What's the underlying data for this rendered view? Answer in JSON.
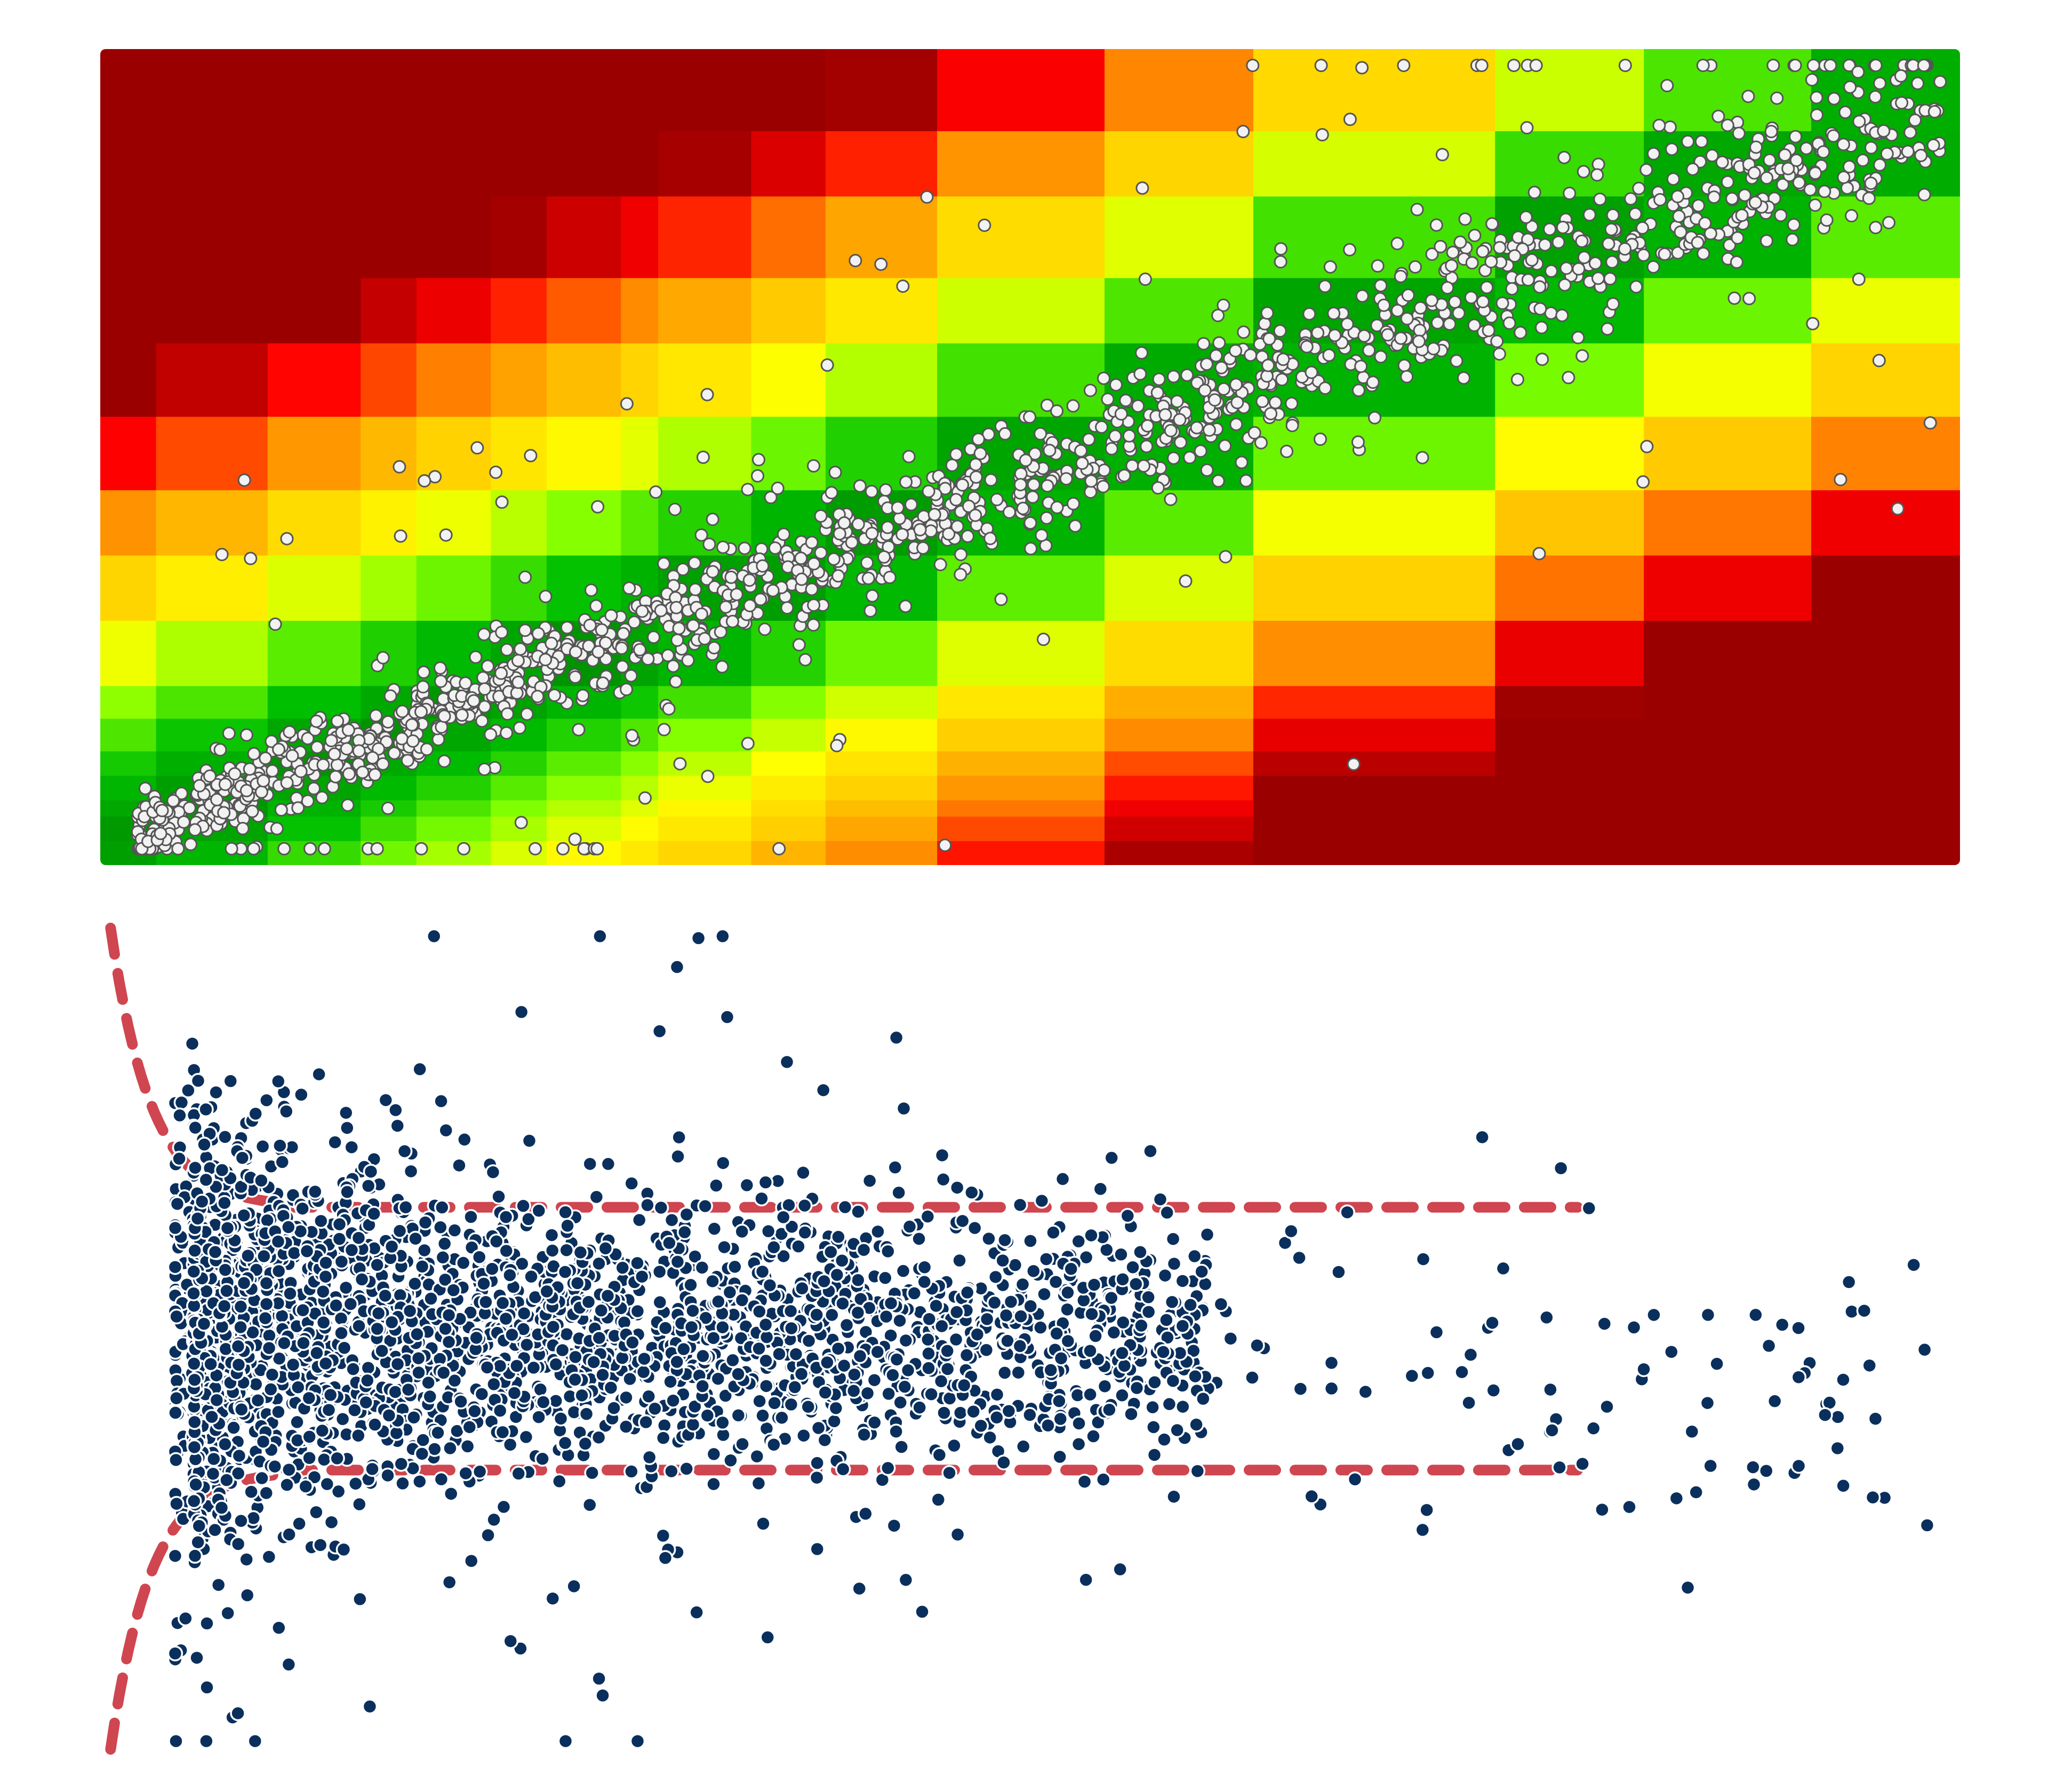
{
  "chart_data": [
    {
      "type": "heatmap",
      "title": "",
      "xlabel": "",
      "ylabel": "",
      "xlim": [
        0,
        1
      ],
      "ylim": [
        0,
        1
      ],
      "grid": false,
      "legend": "none",
      "colormap": [
        "#9b0000",
        "#ff0000",
        "#ff8c00",
        "#ffd000",
        "#ffff00",
        "#80ff00",
        "#00c000",
        "#009400"
      ],
      "point_color": "#f2f2f2",
      "x_bands": [
        0.03,
        0.09,
        0.14,
        0.17,
        0.21,
        0.24,
        0.28,
        0.3,
        0.35,
        0.39,
        0.45,
        0.54,
        0.62,
        0.75,
        0.83,
        0.92,
        1.0
      ],
      "y_bands": [
        0.03,
        0.06,
        0.08,
        0.11,
        0.14,
        0.18,
        0.22,
        0.3,
        0.38,
        0.46,
        0.55,
        0.64,
        0.72,
        0.82,
        0.9,
        1.0
      ],
      "trend": {
        "slope": 0.92,
        "intercept": 0.02,
        "spread": 0.035
      },
      "n_points": 1600
    },
    {
      "type": "scatter",
      "title": "",
      "xlabel": "",
      "ylabel": "",
      "xlim": [
        0,
        1
      ],
      "ylim": [
        -1,
        1
      ],
      "grid": false,
      "legend": "none",
      "point_color": "#0a2f5c",
      "n_points": 3000,
      "guides": {
        "color": "#cf4650",
        "upper_level": 0.32,
        "lower_level": -0.32,
        "curve_end_x": 0.1,
        "line_end_x": 0.8
      }
    }
  ]
}
